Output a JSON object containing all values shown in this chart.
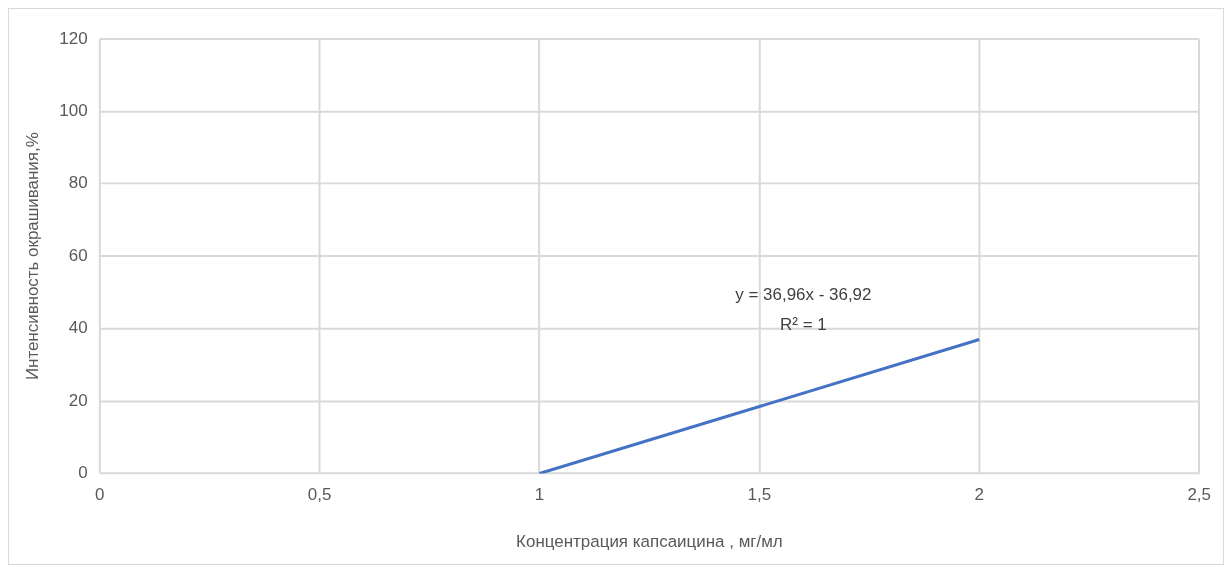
{
  "chart_data": {
    "type": "line",
    "xlabel": "Концентрация капсаицина , мг/мл",
    "ylabel": "Интенсивность окрашивания,%",
    "annotations": [
      "y = 36,96x - 36,92",
      "R² = 1"
    ],
    "x": [
      1,
      2
    ],
    "series": [
      {
        "color": "#4472c4",
        "values": [
          0,
          37
        ]
      }
    ],
    "xlim": [
      0,
      2.5
    ],
    "xticks": [
      0,
      {
        "value": 0.5,
        "label": "0,5"
      },
      1,
      {
        "value": 1.5,
        "label": "1,5"
      },
      2,
      {
        "value": 2.5,
        "label": "2,5"
      }
    ],
    "ylim": [
      0,
      120
    ],
    "yticks": [
      0,
      20,
      40,
      60,
      80,
      100,
      120
    ],
    "grid": true,
    "legend": false,
    "marker": "none",
    "line_style": "solid"
  }
}
